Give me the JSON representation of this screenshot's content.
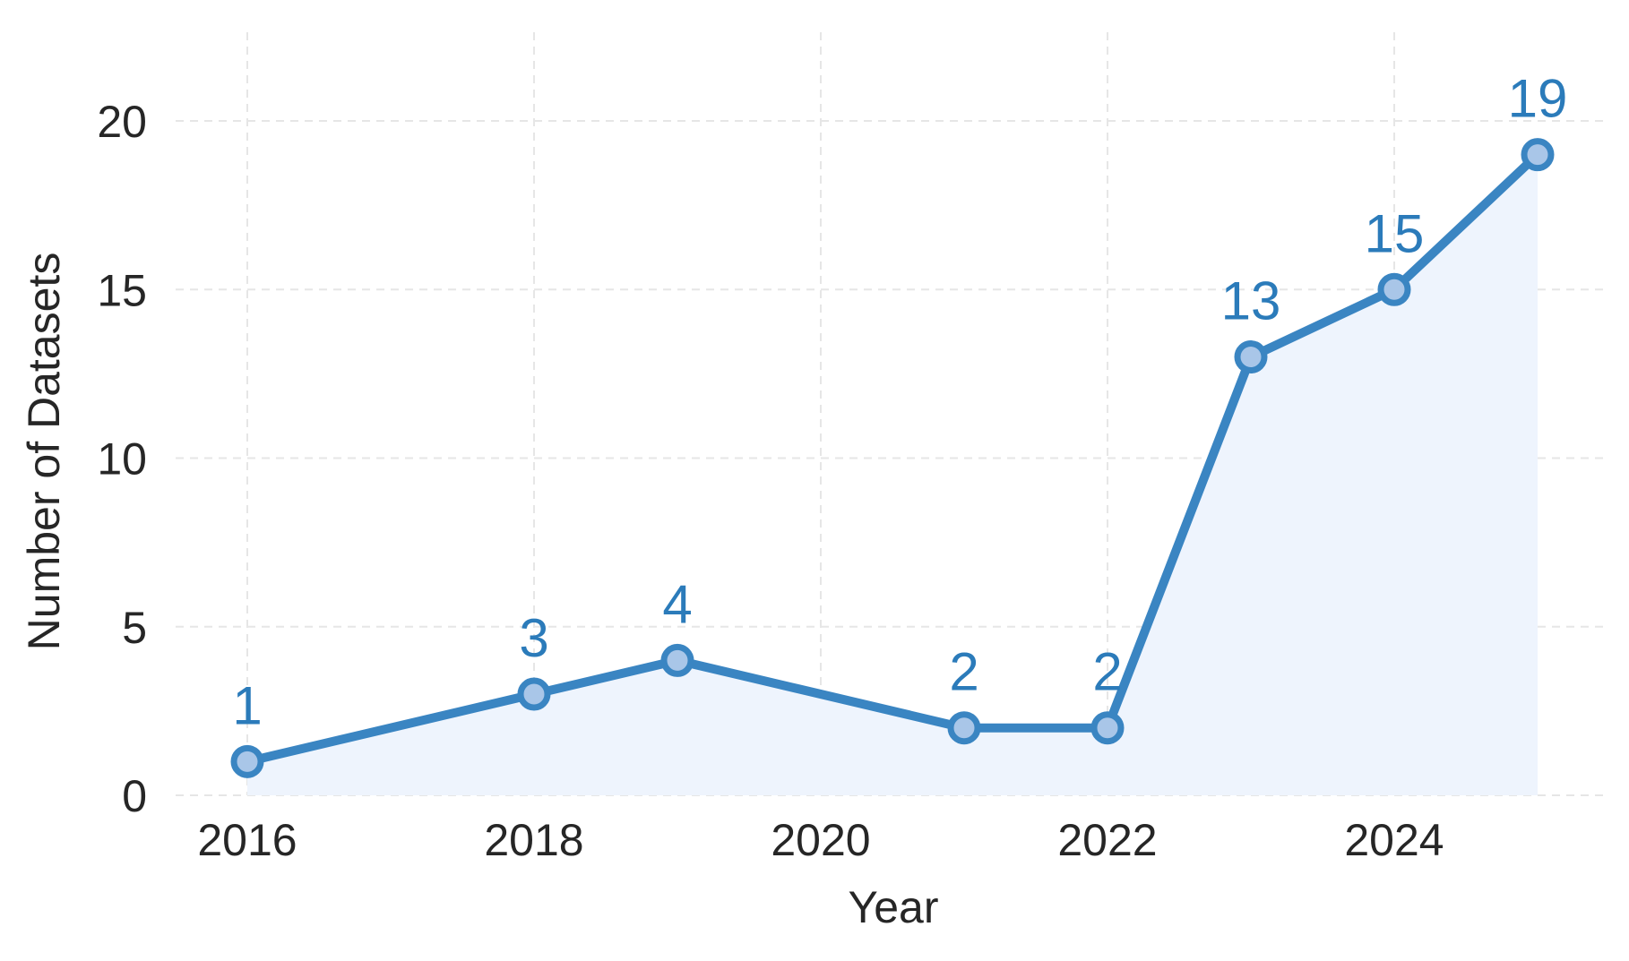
{
  "chart_data": {
    "type": "line",
    "title": "",
    "xlabel": "Year",
    "ylabel": "Number of Datasets",
    "x": [
      2016,
      2018,
      2019,
      2021,
      2022,
      2023,
      2024,
      2025
    ],
    "series": [
      {
        "values": [
          1,
          3,
          4,
          2,
          2,
          13,
          15,
          19
        ]
      }
    ],
    "data_labels": [
      "1",
      "3",
      "4",
      "2",
      "2",
      "13",
      "15",
      "19"
    ],
    "xticks": [
      "2016",
      "2018",
      "2020",
      "2022",
      "2024"
    ],
    "yticks": [
      "0",
      "5",
      "10",
      "15",
      "20"
    ],
    "xlim": [
      2015.5,
      2025.5
    ],
    "ylim": [
      0,
      20
    ],
    "grid": true,
    "area_fill": true,
    "colors": {
      "line": "#3a85c2",
      "marker_fill": "#a9c6e8",
      "area": "#eef4fd",
      "label": "#2b7bba"
    }
  }
}
